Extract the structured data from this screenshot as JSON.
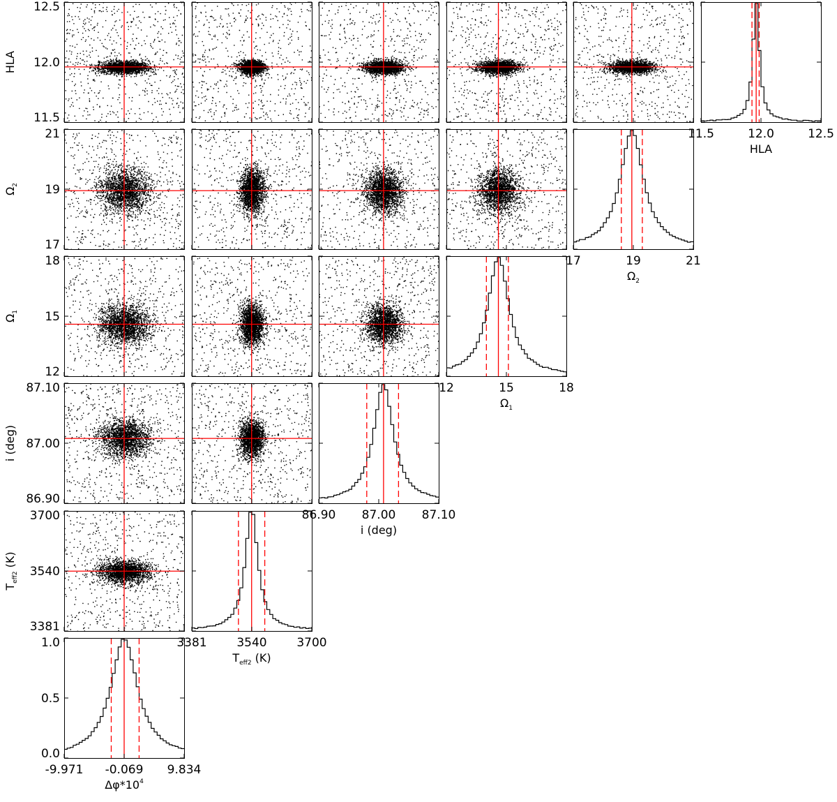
{
  "chart_data": {
    "type": "scatter",
    "layout": "corner",
    "parameters": [
      {
        "key": "dphi",
        "label": "Δφ*10",
        "label_sup": "4",
        "range": [
          -9.971,
          9.834
        ],
        "ticks": [
          "-9.971",
          "-0.069",
          "9.834"
        ],
        "best": -0.069,
        "ci": [
          -2.2,
          2.4
        ],
        "width": 1.6
      },
      {
        "key": "teff2",
        "label": "T",
        "label_sub": "eff2",
        "label_tail": " (K)",
        "range": [
          3381,
          3700
        ],
        "ticks": [
          "3381",
          "3540",
          "3700"
        ],
        "best": 3540,
        "ci": [
          3505,
          3575
        ],
        "width": 12
      },
      {
        "key": "incl",
        "label": "i (deg)",
        "range": [
          86.9,
          87.1
        ],
        "ticks": [
          "86.90",
          "87.00",
          "87.10"
        ],
        "best": 87.008,
        "ci": [
          86.98,
          87.033
        ],
        "width": 0.012
      },
      {
        "key": "omega1",
        "label": "Ω",
        "label_sub": "1",
        "range": [
          12,
          18
        ],
        "ticks": [
          "12",
          "15",
          "18"
        ],
        "best": 14.6,
        "ci": [
          14.0,
          15.1
        ],
        "width": 0.38
      },
      {
        "key": "omega2",
        "label": "Ω",
        "label_sub": "2",
        "range": [
          17,
          21
        ],
        "ticks": [
          "17",
          "19",
          "21"
        ],
        "best": 18.95,
        "ci": [
          18.6,
          19.3
        ],
        "width": 0.28
      },
      {
        "key": "hla",
        "label": "HLA",
        "range": [
          11.5,
          12.5
        ],
        "ticks": [
          "11.5",
          "12.0",
          "12.5"
        ],
        "best": 11.96,
        "ci": [
          11.925,
          11.985
        ],
        "width": 0.02
      }
    ],
    "row_axis_ticks": {
      "hla": [
        "11.5",
        "12.0",
        "12.5"
      ],
      "omega2": [
        "17",
        "19",
        "21"
      ],
      "omega1": [
        "12",
        "15",
        "18"
      ],
      "incl": [
        "86.90",
        "87.00",
        "87.10"
      ],
      "teff2": [
        "3381",
        "3540",
        "3700"
      ],
      "dphi": [
        "0.0",
        "0.5",
        "1.0"
      ]
    },
    "histogram_ylim": [
      0,
      1
    ],
    "histogram_yticks": [
      "0.0",
      "0.5",
      "1.0"
    ],
    "colors": {
      "best_fit": "#ff0000",
      "points": "#000000",
      "frame": "#000000"
    }
  }
}
